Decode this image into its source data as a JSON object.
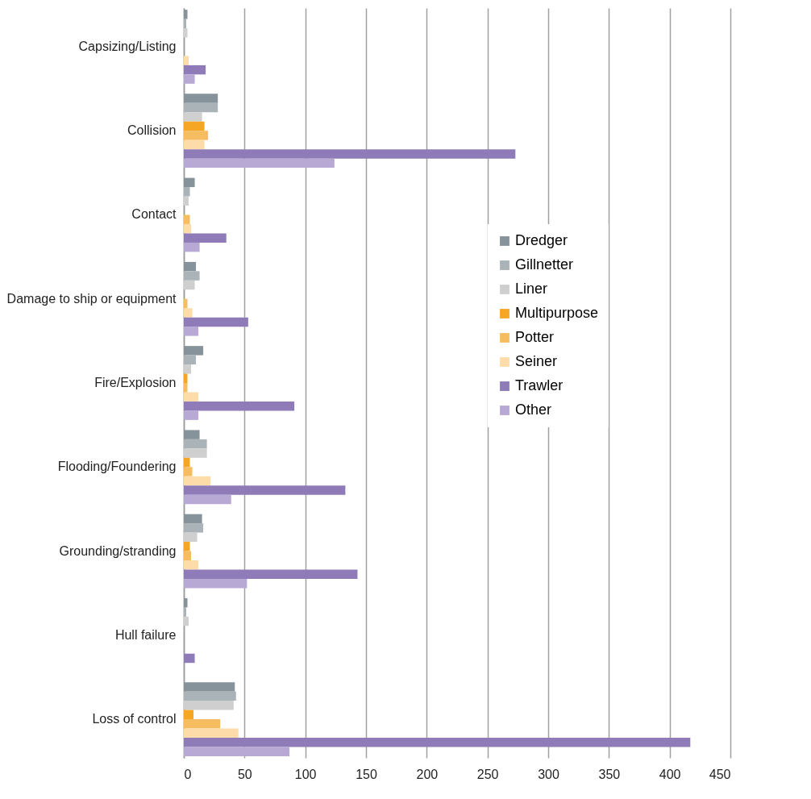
{
  "chart_data": {
    "type": "bar",
    "orientation": "horizontal",
    "categories": [
      "Capsizing/Listing",
      "Collision",
      "Contact",
      "Damage to ship or equipment",
      "Fire/Explosion",
      "Flooding/Foundering",
      "Grounding/stranding",
      "Hull failure",
      "Loss of control"
    ],
    "series": [
      {
        "name": "Dredger",
        "color": "#87939a",
        "values": [
          3,
          28,
          9,
          10,
          16,
          13,
          15,
          3,
          42
        ]
      },
      {
        "name": "Gillnetter",
        "color": "#a9b3b8",
        "values": [
          2,
          28,
          5,
          13,
          10,
          19,
          16,
          2,
          43
        ]
      },
      {
        "name": "Liner",
        "color": "#cfcfcf",
        "values": [
          3,
          15,
          4,
          9,
          6,
          19,
          11,
          4,
          41
        ]
      },
      {
        "name": "Multipurpose",
        "color": "#f5a623",
        "values": [
          0,
          17,
          0,
          0,
          3,
          5,
          5,
          0,
          8
        ]
      },
      {
        "name": "Potter",
        "color": "#f6bd60",
        "values": [
          0,
          20,
          5,
          3,
          3,
          7,
          6,
          0,
          30
        ]
      },
      {
        "name": "Seiner",
        "color": "#fddcaa",
        "values": [
          4,
          17,
          6,
          7,
          12,
          22,
          12,
          0,
          45
        ]
      },
      {
        "name": "Trawler",
        "color": "#8e7bb8",
        "values": [
          18,
          273,
          35,
          53,
          91,
          133,
          143,
          9,
          417
        ]
      },
      {
        "name": "Other",
        "color": "#b7a8d4",
        "values": [
          9,
          124,
          13,
          12,
          12,
          39,
          52,
          0,
          87
        ]
      }
    ],
    "xlim": [
      0,
      450
    ],
    "xticks": [
      0,
      50,
      100,
      150,
      200,
      250,
      300,
      350,
      400,
      450
    ],
    "grid": "x",
    "legend": "right"
  }
}
